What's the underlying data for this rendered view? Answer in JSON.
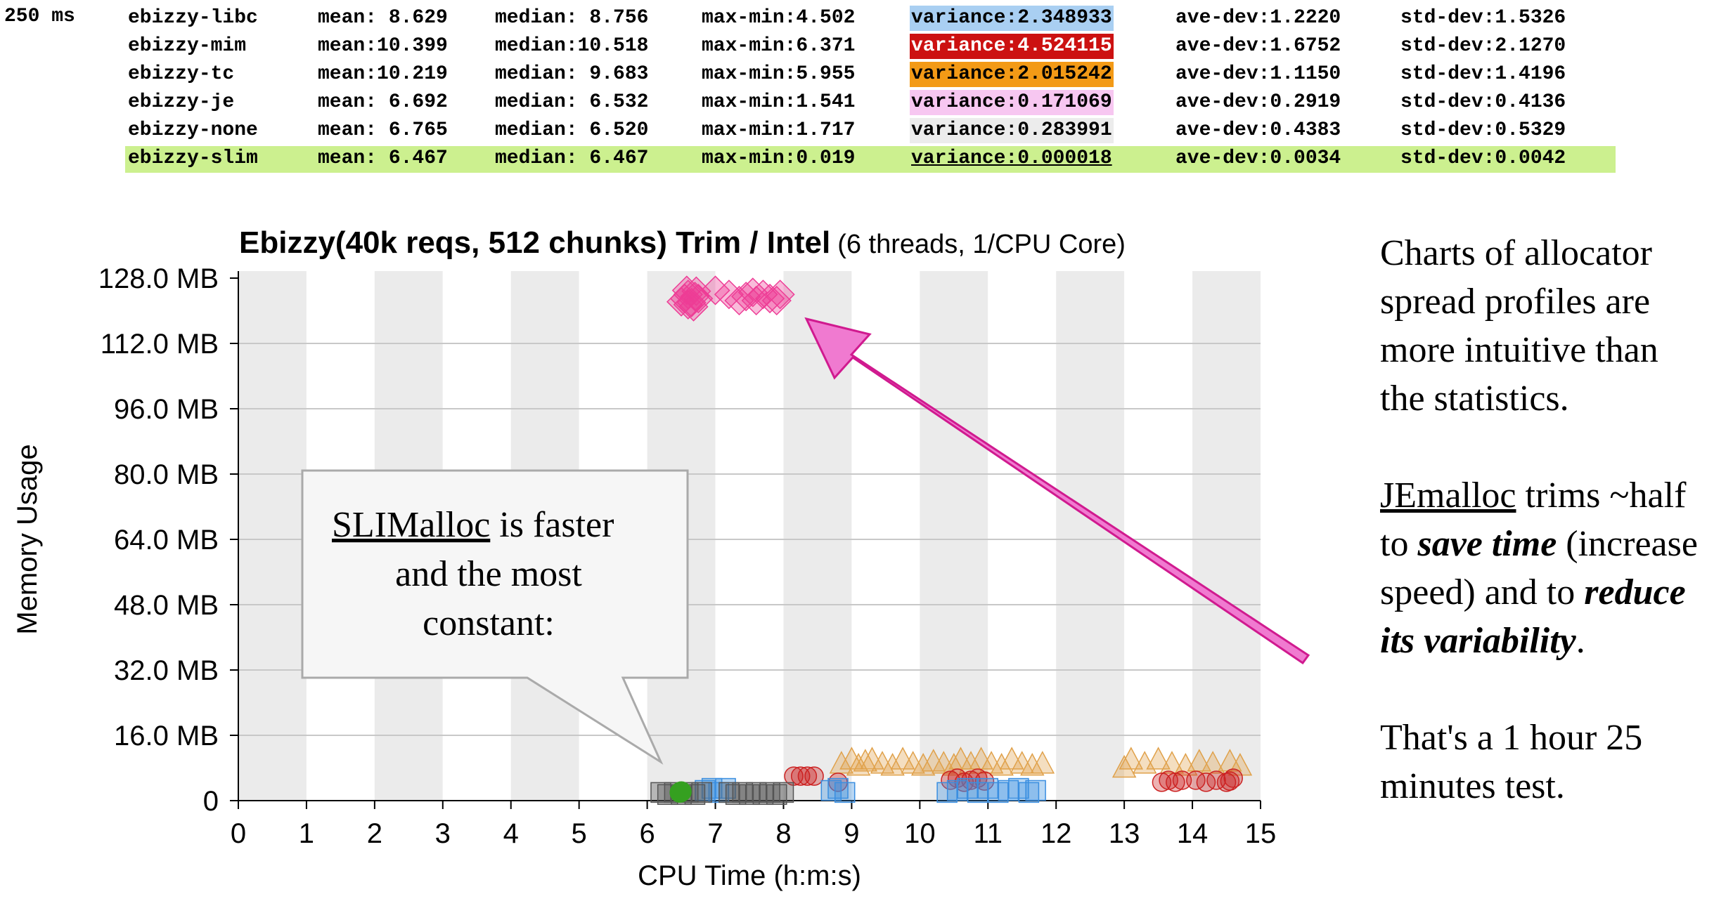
{
  "stats": {
    "interval_label": "250 ms",
    "rows": [
      {
        "name": "ebizzy-libc",
        "mean": "mean: 8.629",
        "median": "median: 8.756",
        "maxmin": "max-min:4.502",
        "variance": "variance:2.348933",
        "avedev": "ave-dev:1.2220",
        "stddev": "std-dev:1.5326",
        "variance_bg": "#a9cff2",
        "variance_fg": "#000000"
      },
      {
        "name": "ebizzy-mim",
        "mean": "mean:10.399",
        "median": "median:10.518",
        "maxmin": "max-min:6.371",
        "variance": "variance:4.524115",
        "avedev": "ave-dev:1.6752",
        "stddev": "std-dev:2.1270",
        "variance_bg": "#cc1111",
        "variance_fg": "#ffffff"
      },
      {
        "name": "ebizzy-tc",
        "mean": "mean:10.219",
        "median": "median: 9.683",
        "maxmin": "max-min:5.955",
        "variance": "variance:2.015242",
        "avedev": "ave-dev:1.1150",
        "stddev": "std-dev:1.4196",
        "variance_bg": "#f39a16",
        "variance_fg": "#000000"
      },
      {
        "name": "ebizzy-je",
        "mean": "mean: 6.692",
        "median": "median: 6.532",
        "maxmin": "max-min:1.541",
        "variance": "variance:0.171069",
        "avedev": "ave-dev:0.2919",
        "stddev": "std-dev:0.4136",
        "variance_bg": "#f7c7f1",
        "variance_fg": "#000000"
      },
      {
        "name": "ebizzy-none",
        "mean": "mean: 6.765",
        "median": "median: 6.520",
        "maxmin": "max-min:1.717",
        "variance": "variance:0.283991",
        "avedev": "ave-dev:0.4383",
        "stddev": "std-dev:0.5329",
        "variance_bg": "#ececec",
        "variance_fg": "#000000"
      },
      {
        "name": "ebizzy-slim",
        "mean": "mean: 6.467",
        "median": "median: 6.467",
        "maxmin": "max-min:0.019",
        "variance": "variance:0.000018",
        "avedev": "ave-dev:0.0034",
        "stddev": "std-dev:0.0042",
        "variance_bg": "#ccf08f",
        "variance_fg": "#000000"
      }
    ]
  },
  "chart_data": {
    "type": "scatter",
    "title_bold": "Ebizzy(40k reqs, 512 chunks) Trim / Intel",
    "title_note": "(6 threads, 1/CPU Core)",
    "xlabel": "CPU Time (h:m:s)",
    "ylabel": "Memory Usage",
    "xlim": [
      0,
      15
    ],
    "ylim": [
      0,
      128
    ],
    "x_ticks": [
      "0",
      "1",
      "2",
      "3",
      "4",
      "5",
      "6",
      "7",
      "8",
      "9",
      "10",
      "11",
      "12",
      "13",
      "14",
      "15"
    ],
    "y_ticks": [
      {
        "value": 0,
        "label": "0"
      },
      {
        "value": 16,
        "label": "16.0 MB"
      },
      {
        "value": 32,
        "label": "32.0 MB"
      },
      {
        "value": 48,
        "label": "48.0 MB"
      },
      {
        "value": 64,
        "label": "64.0 MB"
      },
      {
        "value": 80,
        "label": "80.0 MB"
      },
      {
        "value": 96,
        "label": "96.0 MB"
      },
      {
        "value": 112,
        "label": "112.0 MB"
      },
      {
        "value": 128,
        "label": "128.0 MB"
      }
    ],
    "grid": true,
    "series": [
      {
        "key": "je",
        "marker": "diamond",
        "color": "#ee3c96",
        "points": [
          [
            6.55,
            123
          ],
          [
            6.6,
            124
          ],
          [
            6.65,
            122
          ],
          [
            6.7,
            123.5
          ],
          [
            6.6,
            121.5
          ],
          [
            6.72,
            124.8
          ],
          [
            6.5,
            122.2
          ],
          [
            6.68,
            121
          ],
          [
            6.75,
            123
          ],
          [
            6.58,
            125
          ],
          [
            7.0,
            125
          ],
          [
            7.2,
            124
          ],
          [
            7.35,
            122.5
          ],
          [
            7.45,
            123.5
          ],
          [
            7.6,
            122.5
          ],
          [
            7.7,
            124
          ],
          [
            7.8,
            123
          ],
          [
            7.9,
            122.5
          ],
          [
            7.95,
            124
          ],
          [
            7.55,
            124.5
          ]
        ]
      },
      {
        "key": "tc",
        "marker": "triangle",
        "color": "#e0a14a",
        "points": [
          [
            8.85,
            9
          ],
          [
            9.0,
            10
          ],
          [
            9.1,
            8.5
          ],
          [
            9.2,
            9.5
          ],
          [
            9.3,
            10
          ],
          [
            9.45,
            9
          ],
          [
            9.6,
            8.5
          ],
          [
            9.75,
            10
          ],
          [
            9.9,
            9
          ],
          [
            10.05,
            8.5
          ],
          [
            10.2,
            9.5
          ],
          [
            10.35,
            9
          ],
          [
            10.5,
            8.5
          ],
          [
            10.6,
            10
          ],
          [
            10.75,
            9
          ],
          [
            10.9,
            10
          ],
          [
            11.05,
            9
          ],
          [
            11.2,
            8.5
          ],
          [
            11.35,
            10
          ],
          [
            11.5,
            9
          ],
          [
            11.65,
            8.5
          ],
          [
            11.8,
            9
          ],
          [
            13.0,
            8
          ],
          [
            13.1,
            10
          ],
          [
            13.3,
            9
          ],
          [
            13.5,
            10
          ],
          [
            13.7,
            9
          ],
          [
            13.9,
            8.5
          ],
          [
            14.1,
            9.5
          ],
          [
            14.3,
            9
          ],
          [
            14.55,
            9.5
          ],
          [
            14.7,
            8.5
          ]
        ]
      },
      {
        "key": "mim",
        "marker": "circle",
        "color": "#cc2222",
        "points": [
          [
            8.15,
            6
          ],
          [
            8.25,
            6
          ],
          [
            8.35,
            6
          ],
          [
            8.45,
            6
          ],
          [
            8.8,
            4.5
          ],
          [
            10.45,
            5
          ],
          [
            10.55,
            5.5
          ],
          [
            10.65,
            4.5
          ],
          [
            10.75,
            5
          ],
          [
            10.85,
            5.5
          ],
          [
            10.95,
            4.8
          ],
          [
            13.55,
            4.5
          ],
          [
            13.65,
            5
          ],
          [
            13.75,
            4.5
          ],
          [
            13.85,
            5
          ],
          [
            14.05,
            5
          ],
          [
            14.2,
            4.5
          ],
          [
            14.35,
            5
          ],
          [
            14.5,
            4.5
          ],
          [
            14.6,
            5.5
          ],
          [
            14.55,
            4.8
          ]
        ]
      },
      {
        "key": "libc",
        "marker": "square",
        "color": "#3a8ee0",
        "points": [
          [
            6.85,
            2.5
          ],
          [
            6.95,
            3
          ],
          [
            7.05,
            2
          ],
          [
            7.15,
            3
          ],
          [
            8.7,
            2.5
          ],
          [
            8.8,
            3
          ],
          [
            8.9,
            2
          ],
          [
            10.4,
            2
          ],
          [
            10.55,
            2.5
          ],
          [
            10.7,
            3
          ],
          [
            10.85,
            2
          ],
          [
            11.0,
            3
          ],
          [
            11.15,
            2
          ],
          [
            11.3,
            2.5
          ],
          [
            11.45,
            3
          ],
          [
            11.6,
            2
          ],
          [
            11.7,
            2.5
          ]
        ]
      },
      {
        "key": "none",
        "marker": "square",
        "color": "#555555",
        "points": [
          [
            6.2,
            2
          ],
          [
            6.3,
            1.5
          ],
          [
            6.4,
            2
          ],
          [
            6.5,
            1.5
          ],
          [
            6.6,
            2
          ],
          [
            6.7,
            1.5
          ],
          [
            6.8,
            2
          ],
          [
            7.2,
            2
          ],
          [
            7.3,
            1.5
          ],
          [
            7.4,
            2
          ],
          [
            7.5,
            1.5
          ],
          [
            7.6,
            2
          ],
          [
            7.7,
            1.5
          ],
          [
            7.8,
            2
          ],
          [
            7.9,
            1.5
          ],
          [
            8.0,
            2
          ]
        ]
      },
      {
        "key": "slim",
        "marker": "circle",
        "color": "#35a020",
        "points": [
          [
            6.48,
            2
          ],
          [
            6.5,
            2.2
          ]
        ]
      }
    ]
  },
  "callout": {
    "line1_underlined": "SLIMalloc",
    "line1_rest": " is faster",
    "line2": "and the most",
    "line3": "constant:"
  },
  "side": {
    "p1": "Charts of allocator spread profiles are more intuitive  than the statistics.",
    "p2_u": "JEmalloc",
    "p2_a": " trims ~half to ",
    "p2_b1": "save time",
    "p2_c": " (increase speed) and to ",
    "p2_b2": "reduce its variability",
    "p2_d": ".",
    "p3": "That's a 1 hour 25 minutes test."
  }
}
